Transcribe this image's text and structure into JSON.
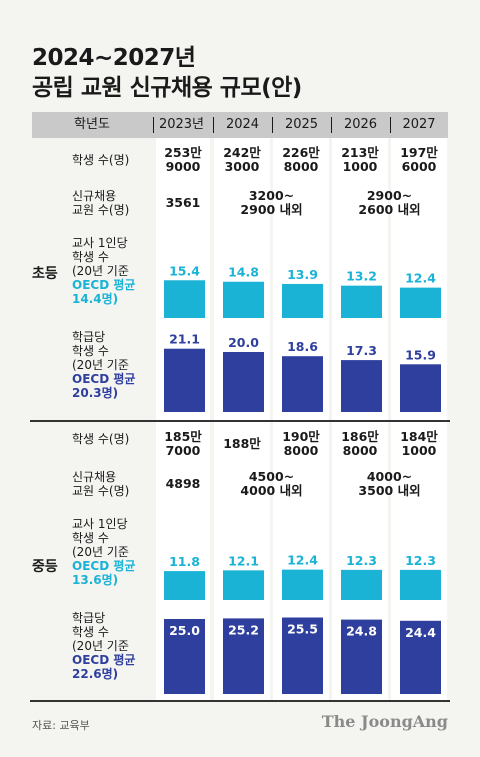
{
  "title_line1": "2024~2027년",
  "title_line2": "공립 교원 신규채용 규모(안)",
  "header": {
    "label": "학년도",
    "years": [
      "2023년",
      "2024",
      "2025",
      "2026",
      "2027"
    ]
  },
  "groups": {
    "elementary": "초등",
    "middle": "중등"
  },
  "elementary": {
    "students": {
      "label": "학생 수(명)",
      "values": [
        [
          "253만",
          "9000"
        ],
        [
          "242만",
          "3000"
        ],
        [
          "226만",
          "8000"
        ],
        [
          "213만",
          "1000"
        ],
        [
          "197만",
          "6000"
        ]
      ]
    },
    "hiring": {
      "label": [
        "신규채용",
        "교원 수(명)"
      ],
      "v2023": "3561",
      "v2024_2025": [
        "3200~",
        "2900 내외"
      ],
      "v2026_2027": [
        "2900~",
        "2600 내외"
      ]
    },
    "per_teacher_label": [
      "교사 1인당",
      "학생 수",
      "(20년 기준",
      "OECD 평균",
      "14.4명)"
    ],
    "per_class_label": [
      "학급당",
      "학생 수",
      "(20년 기준",
      "OECD 평균",
      "20.3명)"
    ]
  },
  "middle": {
    "students": {
      "label": "학생 수(명)",
      "values": [
        [
          "185만",
          "7000"
        ],
        [
          "188만",
          ""
        ],
        [
          "190만",
          "8000"
        ],
        [
          "186만",
          "8000"
        ],
        [
          "184만",
          "1000"
        ]
      ]
    },
    "hiring": {
      "label": [
        "신규채용",
        "교원 수(명)"
      ],
      "v2023": "4898",
      "v2024_2025": [
        "4500~",
        "4000 내외"
      ],
      "v2026_2027": [
        "4000~",
        "3500 내외"
      ]
    },
    "per_teacher_label": [
      "교사 1인당",
      "학생 수",
      "(20년 기준",
      "OECD 평균",
      "13.6명)"
    ],
    "per_class_label": [
      "학급당",
      "학생 수",
      "(20년 기준",
      "OECD 평균",
      "22.6명)"
    ]
  },
  "colors": {
    "cyan": "#1ab3d6",
    "navy": "#2f3f9e",
    "header_bg": "#c9c9c9",
    "panel_bg": "#ffffff"
  },
  "chart_data": [
    {
      "type": "bar",
      "group": "초등",
      "categories": [
        "2023년",
        "2024",
        "2025",
        "2026",
        "2027"
      ],
      "series": [
        {
          "values": [
            15.4,
            14.8,
            13.9,
            13.2,
            12.4
          ]
        }
      ],
      "color": "#1ab3d6"
    },
    {
      "type": "bar",
      "group": "초등",
      "categories": [
        "2023년",
        "2024",
        "2025",
        "2026",
        "2027"
      ],
      "series": [
        {
          "values": [
            21.1,
            20.0,
            18.6,
            17.3,
            15.9
          ]
        }
      ],
      "color": "#2f3f9e"
    },
    {
      "type": "bar",
      "group": "중등",
      "categories": [
        "2023년",
        "2024",
        "2025",
        "2026",
        "2027"
      ],
      "series": [
        {
          "values": [
            11.8,
            12.1,
            12.4,
            12.3,
            12.3
          ]
        }
      ],
      "color": "#1ab3d6"
    },
    {
      "type": "bar",
      "group": "중등",
      "categories": [
        "2023년",
        "2024",
        "2025",
        "2026",
        "2027"
      ],
      "series": [
        {
          "values": [
            25.0,
            25.2,
            25.5,
            24.8,
            24.4
          ]
        }
      ],
      "color": "#2f3f9e"
    }
  ],
  "source": "자료: 교육부",
  "brand": "The JoongAng"
}
